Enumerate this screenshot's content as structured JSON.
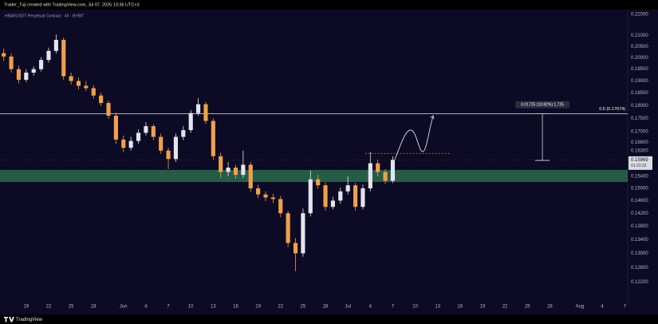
{
  "header": "Trader_Tuji created with TradingView.com, Jul 07, 2025 13:36 UTC+3",
  "footer": "TradingView",
  "chart_data": {
    "type": "candlestick",
    "title": "HBARUSDT Perpetual Contract · 4h · BYBIT",
    "log_scale": true,
    "grid": false,
    "up_color": "#e4e4ee",
    "down_color": "#f0a04b",
    "ylim": [
      0.12,
      0.22
    ],
    "yticks": [
      {
        "value": 0.22,
        "label": "0.22000"
      },
      {
        "value": 0.21,
        "label": "0.21000"
      },
      {
        "value": 0.205,
        "label": "0.20500"
      },
      {
        "value": 0.2,
        "label": "0.20000"
      },
      {
        "value": 0.195,
        "label": "0.19500"
      },
      {
        "value": 0.19,
        "label": "0.19000"
      },
      {
        "value": 0.185,
        "label": "0.18500"
      },
      {
        "value": 0.18,
        "label": "0.18000"
      },
      {
        "value": 0.175,
        "label": "0.17500"
      },
      {
        "value": 0.17,
        "label": "0.17000"
      },
      {
        "value": 0.166,
        "label": "0.16600"
      },
      {
        "value": 0.163,
        "label": "0.16300"
      },
      {
        "value": 0.154,
        "label": "0.15400"
      },
      {
        "value": 0.15,
        "label": "0.15000"
      },
      {
        "value": 0.146,
        "label": "0.14600"
      },
      {
        "value": 0.142,
        "label": "0.14200"
      },
      {
        "value": 0.138,
        "label": "0.13800"
      },
      {
        "value": 0.134,
        "label": "0.13400"
      },
      {
        "value": 0.13,
        "label": "0.13000"
      },
      {
        "value": 0.126,
        "label": "0.12600"
      },
      {
        "value": 0.122,
        "label": "0.12200"
      }
    ],
    "xlim": [
      15.5,
      99.4
    ],
    "xticks": [
      19,
      22,
      25,
      28,
      {
        "value": 32,
        "label": "Jun"
      },
      {
        "value": 35,
        "label": "4"
      },
      {
        "value": 38,
        "label": "7"
      },
      {
        "value": 41,
        "label": "10"
      },
      {
        "value": 44,
        "label": "13"
      },
      {
        "value": 47,
        "label": "16"
      },
      {
        "value": 50,
        "label": "19"
      },
      {
        "value": 53,
        "label": "22"
      },
      {
        "value": 56,
        "label": "25"
      },
      {
        "value": 59,
        "label": "28"
      },
      {
        "value": 62,
        "label": "Jul"
      },
      {
        "value": 65,
        "label": "4"
      },
      {
        "value": 68,
        "label": "7"
      },
      {
        "value": 71,
        "label": "10"
      },
      {
        "value": 74,
        "label": "13"
      },
      {
        "value": 77,
        "label": "16"
      },
      {
        "value": 80,
        "label": "19"
      },
      {
        "value": 83,
        "label": "22"
      },
      {
        "value": 86,
        "label": "25"
      },
      {
        "value": 89,
        "label": "28"
      },
      {
        "value": 93,
        "label": "Aug"
      },
      {
        "value": 96,
        "label": "4"
      },
      {
        "value": 99,
        "label": "7"
      }
    ],
    "candles": {
      "x": [
        16,
        17,
        18,
        19,
        20,
        21,
        22,
        23,
        24,
        25,
        26,
        27,
        28,
        29,
        30,
        31,
        32,
        33,
        34,
        35,
        36,
        37,
        38,
        39,
        40,
        41,
        42,
        43,
        44,
        45,
        46,
        47,
        48,
        49,
        50,
        51,
        52,
        53,
        54,
        55,
        56,
        57,
        58,
        59,
        60,
        61,
        62,
        63,
        64,
        65,
        66,
        67,
        68
      ],
      "open": [
        0.202,
        0.2005,
        0.195,
        0.1905,
        0.1935,
        0.195,
        0.199,
        0.203,
        0.208,
        0.192,
        0.19,
        0.188,
        0.187,
        0.184,
        0.181,
        0.176,
        0.167,
        0.164,
        0.1665,
        0.1695,
        0.172,
        0.168,
        0.163,
        0.16,
        0.168,
        0.1705,
        0.177,
        0.1805,
        0.174,
        0.161,
        0.1555,
        0.157,
        0.1545,
        0.158,
        0.15,
        0.148,
        0.147,
        0.1465,
        0.142,
        0.133,
        0.13,
        0.142,
        0.153,
        0.151,
        0.144,
        0.146,
        0.149,
        0.151,
        0.144,
        0.15,
        0.1585,
        0.1555,
        0.1525
      ],
      "high": [
        0.204,
        0.202,
        0.1965,
        0.195,
        0.1962,
        0.2002,
        0.2045,
        0.2105,
        0.209,
        0.1935,
        0.1915,
        0.19,
        0.1882,
        0.1852,
        0.182,
        0.1772,
        0.1685,
        0.168,
        0.1708,
        0.1735,
        0.1728,
        0.1692,
        0.164,
        0.1692,
        0.172,
        0.1782,
        0.183,
        0.1815,
        0.175,
        0.1622,
        0.159,
        0.158,
        0.163,
        0.159,
        0.1512,
        0.149,
        0.1482,
        0.1475,
        0.1428,
        0.1345,
        0.1435,
        0.156,
        0.1545,
        0.152,
        0.1472,
        0.1502,
        0.154,
        0.1518,
        0.1512,
        0.1625,
        0.1598,
        0.1565,
        0.161
      ],
      "low": [
        0.1985,
        0.1935,
        0.189,
        0.1895,
        0.1922,
        0.194,
        0.1978,
        0.2018,
        0.1905,
        0.1885,
        0.1865,
        0.1858,
        0.1828,
        0.1798,
        0.1748,
        0.1655,
        0.1625,
        0.163,
        0.1655,
        0.1685,
        0.1668,
        0.1618,
        0.1565,
        0.159,
        0.1668,
        0.1695,
        0.176,
        0.1728,
        0.1598,
        0.1535,
        0.154,
        0.1532,
        0.1535,
        0.1488,
        0.1468,
        0.1458,
        0.1452,
        0.1408,
        0.1318,
        0.125,
        0.129,
        0.141,
        0.1498,
        0.1428,
        0.1432,
        0.145,
        0.148,
        0.1428,
        0.1432,
        0.149,
        0.154,
        0.1515,
        0.1518
      ],
      "close": [
        0.2005,
        0.195,
        0.1905,
        0.1935,
        0.195,
        0.199,
        0.203,
        0.208,
        0.192,
        0.19,
        0.188,
        0.187,
        0.184,
        0.181,
        0.176,
        0.167,
        0.164,
        0.1665,
        0.1695,
        0.172,
        0.168,
        0.163,
        0.16,
        0.168,
        0.1705,
        0.177,
        0.1805,
        0.174,
        0.161,
        0.1555,
        0.157,
        0.1545,
        0.158,
        0.15,
        0.148,
        0.147,
        0.1465,
        0.142,
        0.133,
        0.13,
        0.142,
        0.153,
        0.151,
        0.144,
        0.146,
        0.149,
        0.151,
        0.144,
        0.15,
        0.1585,
        0.1555,
        0.1525,
        0.15969
      ]
    },
    "zone": [
      0.1521,
      0.1562
    ],
    "zone_color": "#2d6a4f",
    "level": {
      "value": 0.17674,
      "label": "0.5 (0.17674)"
    },
    "measure": {
      "from": 0.15949,
      "to": 0.17674,
      "x": 88,
      "label": "0.01725 (10.82%) 1,725"
    },
    "dashed_level": {
      "value": 0.162,
      "x": [
        64.3,
        75.7
      ]
    },
    "last_price": {
      "value": 0.15969,
      "label": "0.15969"
    },
    "countdown": "01:23:23"
  }
}
